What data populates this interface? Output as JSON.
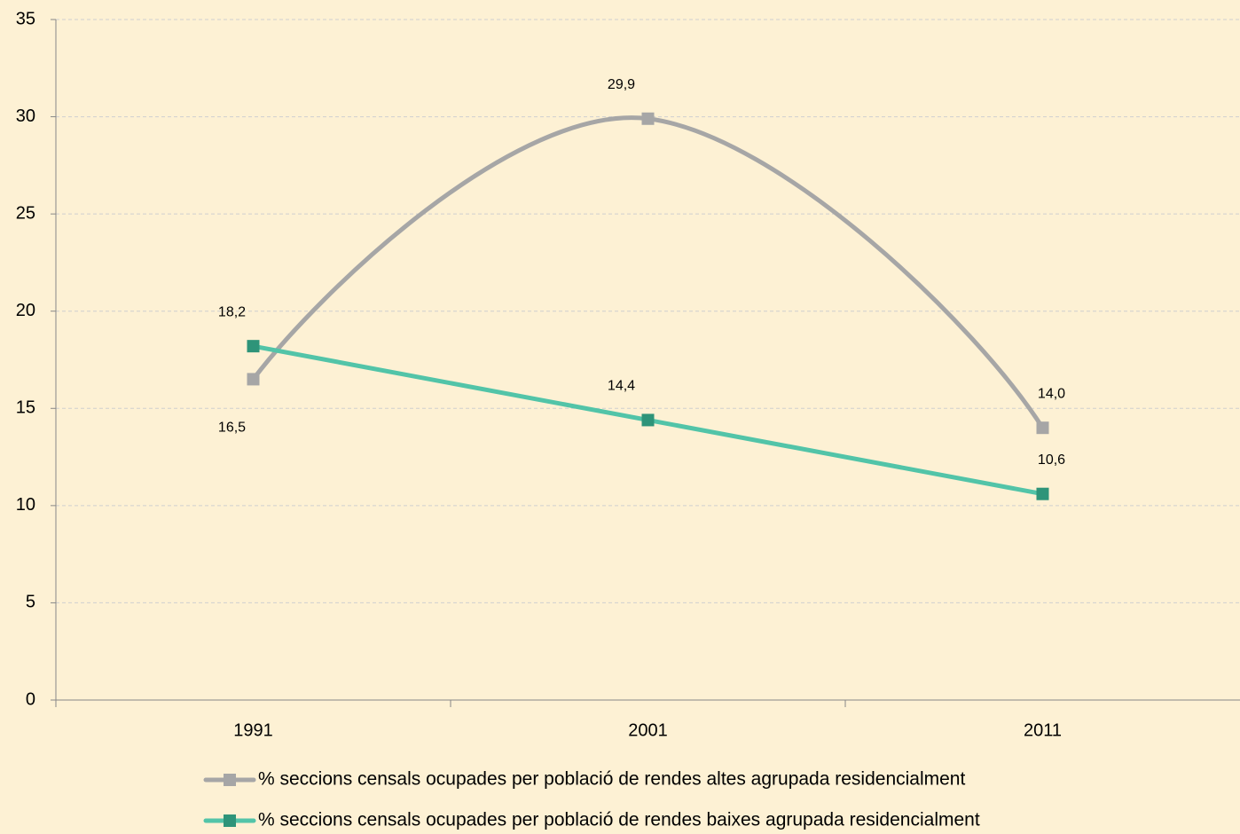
{
  "chart_data": {
    "type": "line",
    "categories": [
      "1991",
      "2001",
      "2011"
    ],
    "series": [
      {
        "name": "% seccions censals ocupades per població de rendes altes agrupada residencialment",
        "color": "#a6a6a6",
        "marker_color": "#a6a6a6",
        "smooth": true,
        "values": [
          16.5,
          29.9,
          14.0
        ],
        "value_labels": [
          "16,5",
          "29,9",
          "14,0"
        ]
      },
      {
        "name": "% seccions censals ocupades per població de rendes baixes agrupada residencialment",
        "color": "#52c4a8",
        "marker_color": "#2e9479",
        "smooth": false,
        "values": [
          18.2,
          14.4,
          10.6
        ],
        "value_labels": [
          "18,2",
          "14,4",
          "10,6"
        ]
      }
    ],
    "ylim": [
      0,
      35
    ],
    "yticks": [
      0,
      5,
      10,
      15,
      20,
      25,
      30,
      35
    ],
    "grid": true,
    "legend": "bottom"
  }
}
